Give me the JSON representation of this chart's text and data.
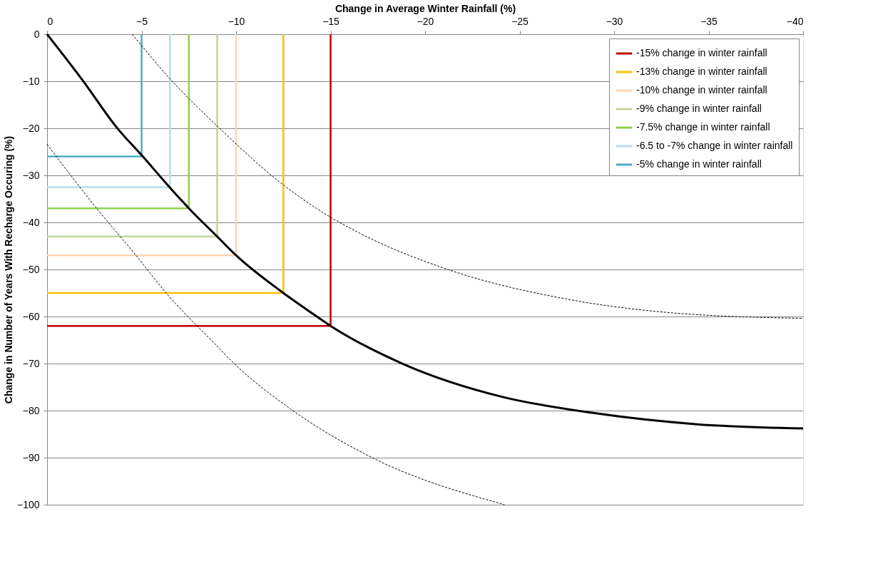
{
  "chart_data": {
    "type": "line",
    "xlabel": "Change in Average Winter Rainfall (%)",
    "ylabel": "Change in Number of Years With Recharge Occuring (%)",
    "xlim": [
      0,
      -40
    ],
    "xticks": [
      0,
      -5,
      -10,
      -15,
      -20,
      -25,
      -30,
      -35,
      -40
    ],
    "ylim": [
      -100,
      0
    ],
    "yticks": [
      0,
      -10,
      -20,
      -30,
      -40,
      -50,
      -60,
      -70,
      -80,
      -90,
      -100
    ],
    "grid": "y",
    "legend": "top right",
    "line_style": "solid",
    "marker": "none",
    "series": [
      {
        "name": "-15% change in winter rainfall",
        "color": "#c00000",
        "x": [
          0,
          -15,
          -15
        ],
        "values": [
          -62,
          -62,
          0
        ]
      },
      {
        "name": "-13% change in winter rainfall",
        "color": "#ffc000",
        "x": [
          0,
          -12.5,
          -12.5
        ],
        "values": [
          -55,
          -55,
          0
        ]
      },
      {
        "name": "-10% change in winter rainfall",
        "color": "#fcd5b5",
        "x": [
          0,
          -10,
          -10
        ],
        "values": [
          -47,
          -47,
          0
        ]
      },
      {
        "name": "-9% change in winter rainfall",
        "color": "#c3d69b",
        "x": [
          0,
          -9,
          -9
        ],
        "values": [
          -43,
          -43,
          0
        ]
      },
      {
        "name": "-7.5% change in winter rainfall",
        "color": "#92d050",
        "x": [
          0,
          -7.5,
          -7.5
        ],
        "values": [
          -37,
          -37,
          0
        ]
      },
      {
        "name": "-6.5 to -7% change in winter rainfall",
        "color": "#b7dee8",
        "x": [
          0,
          -6.5,
          -6.5
        ],
        "values": [
          -32.5,
          -32.5,
          0
        ]
      },
      {
        "name": "-5% change in winter rainfall",
        "color": "#4bacc6",
        "x": [
          0,
          -5,
          -5
        ],
        "values": [
          -26,
          -26,
          0
        ]
      },
      {
        "color": "#000000",
        "x": [
          0,
          -1.9,
          -3.7,
          -5,
          -6.5,
          -7.5,
          -9,
          -10,
          -12.5,
          -13.8,
          -15,
          -18.9,
          -24.1,
          -28.9,
          -34.4,
          -40
        ],
        "values": [
          0,
          -9.9,
          -19.9,
          -25.7,
          -32.6,
          -37,
          -43,
          -47,
          -55,
          -58.7,
          -62,
          -70.2,
          -77.1,
          -80.5,
          -82.9,
          -83.8
        ]
      },
      {
        "color": "#000000",
        "line_style": "dashed",
        "x": [
          -4.5,
          -6.6,
          -9.1,
          -12.3,
          -15,
          -16.4,
          -21.2,
          -27.5,
          -32.7,
          -40
        ],
        "values": [
          0,
          -9.9,
          -19.9,
          -31.4,
          -38.9,
          -42,
          -50,
          -56.3,
          -59.1,
          -60.4
        ]
      },
      {
        "color": "#000000",
        "line_style": "dashed",
        "x": [
          0,
          -2.6,
          -4.6,
          -6.3,
          -8.8,
          -9.9,
          -12.9,
          -17.1,
          -24.2
        ],
        "values": [
          -23.4,
          -36.9,
          -46.5,
          -55,
          -65.5,
          -70,
          -79.7,
          -89.8,
          -100
        ]
      }
    ]
  }
}
